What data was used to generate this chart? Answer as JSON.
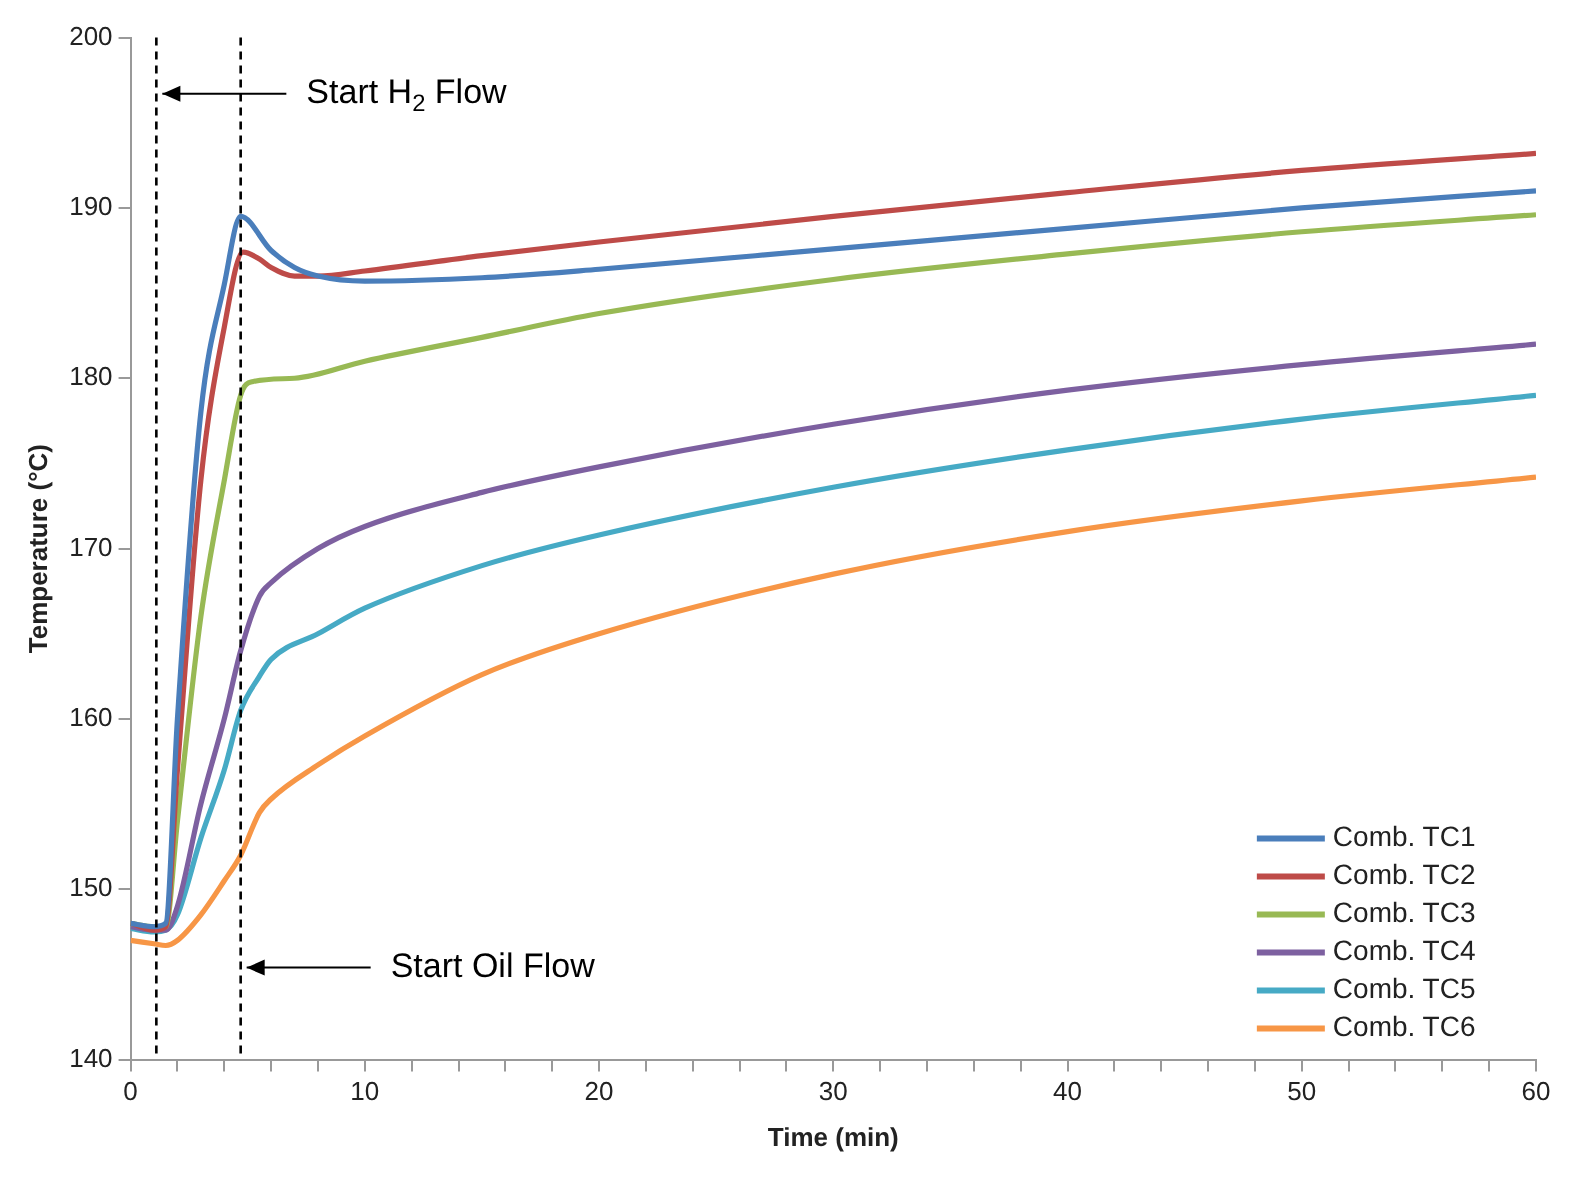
{
  "chart_data": {
    "type": "line",
    "xlabel": "Time (min)",
    "ylabel": "Temperature (°C)",
    "xlim": [
      0,
      60
    ],
    "xticks": [
      0,
      {
        "value": 2,
        "label": null
      },
      {
        "value": 4,
        "label": null
      },
      {
        "value": 6,
        "label": null
      },
      {
        "value": 8,
        "label": null
      },
      10,
      {
        "value": 12,
        "label": null
      },
      {
        "value": 14,
        "label": null
      },
      {
        "value": 16,
        "label": null
      },
      {
        "value": 18,
        "label": null
      },
      20,
      {
        "value": 22,
        "label": null
      },
      {
        "value": 24,
        "label": null
      },
      {
        "value": 26,
        "label": null
      },
      {
        "value": 28,
        "label": null
      },
      30,
      {
        "value": 32,
        "label": null
      },
      {
        "value": 34,
        "label": null
      },
      {
        "value": 36,
        "label": null
      },
      {
        "value": 38,
        "label": null
      },
      40,
      {
        "value": 42,
        "label": null
      },
      {
        "value": 44,
        "label": null
      },
      {
        "value": 46,
        "label": null
      },
      {
        "value": 48,
        "label": null
      },
      50,
      {
        "value": 52,
        "label": null
      },
      {
        "value": 54,
        "label": null
      },
      {
        "value": 56,
        "label": null
      },
      {
        "value": 58,
        "label": null
      },
      60
    ],
    "ylim": [
      140,
      200
    ],
    "yticks": [
      140,
      150,
      160,
      170,
      180,
      190,
      200
    ],
    "grid": false,
    "legend": "bottom right",
    "marker": "none",
    "line_style": "solid",
    "ref_lines": [
      {
        "axis": "x",
        "value": 1.1,
        "label": "Start H$_{2}$ Flow",
        "color": "#000000",
        "line_style": "dashed"
      },
      {
        "axis": "x",
        "value": 4.7,
        "label": "Start Oil Flow",
        "color": "#000000",
        "line_style": "dashed"
      }
    ],
    "series": [
      {
        "name": "Comb. TC1",
        "color": "#4a7ebb",
        "x": [
          0,
          1,
          1.5,
          2,
          3,
          4,
          4.7,
          6,
          7,
          8,
          10,
          15,
          20,
          30,
          40,
          50,
          60
        ],
        "values": [
          148,
          147.8,
          148,
          160,
          178,
          185.5,
          189.5,
          187.5,
          186.5,
          186,
          185.7,
          185.9,
          186.4,
          187.6,
          188.8,
          190,
          191
        ]
      },
      {
        "name": "Comb. TC2",
        "color": "#be4b48",
        "x": [
          0,
          1,
          1.5,
          2,
          3,
          4,
          4.8,
          5.5,
          6,
          7,
          8,
          10,
          15,
          20,
          30,
          40,
          50,
          60
        ],
        "values": [
          148,
          147.6,
          147.8,
          157,
          174,
          183,
          187.4,
          187,
          186.5,
          186,
          186,
          186.3,
          187.2,
          188,
          189.5,
          190.9,
          192.2,
          193.2
        ]
      },
      {
        "name": "Comb. TC3",
        "color": "#98b954",
        "x": [
          0,
          1,
          1.5,
          2,
          3,
          4,
          4.7,
          5.2,
          7,
          10,
          15,
          20,
          30,
          40,
          50,
          60
        ],
        "values": [
          148,
          147.8,
          147.8,
          154,
          166,
          174,
          179,
          179.8,
          180,
          181,
          182.4,
          183.8,
          185.8,
          187.3,
          188.6,
          189.6
        ]
      },
      {
        "name": "Comb. TC4",
        "color": "#7d60a0",
        "x": [
          0,
          1,
          1.5,
          2,
          3,
          4,
          4.7,
          5.5,
          6,
          8,
          10,
          15,
          20,
          30,
          40,
          50,
          60
        ],
        "values": [
          147.8,
          147.6,
          147.6,
          149,
          155,
          160,
          164,
          167.2,
          168,
          170,
          171.3,
          173.3,
          174.8,
          177.3,
          179.3,
          180.8,
          182
        ]
      },
      {
        "name": "Comb. TC5",
        "color": "#46aac5",
        "x": [
          0,
          1,
          1.5,
          2,
          3,
          4,
          4.7,
          5.5,
          6,
          8,
          10,
          15,
          20,
          30,
          40,
          50,
          60
        ],
        "values": [
          147.7,
          147.5,
          147.6,
          148.5,
          153,
          157,
          160.5,
          162.5,
          163.5,
          165,
          166.5,
          169,
          170.8,
          173.6,
          175.8,
          177.6,
          179
        ]
      },
      {
        "name": "Comb. TC6",
        "color": "#f79646",
        "x": [
          0,
          1,
          1.5,
          2,
          3,
          4,
          4.7,
          5.5,
          6,
          8,
          10,
          15,
          20,
          30,
          40,
          50,
          60
        ],
        "values": [
          147,
          146.8,
          146.7,
          147,
          148.5,
          150.5,
          152,
          154.5,
          155.3,
          157.3,
          159,
          162.6,
          165,
          168.5,
          171,
          172.8,
          174.2
        ]
      }
    ]
  }
}
